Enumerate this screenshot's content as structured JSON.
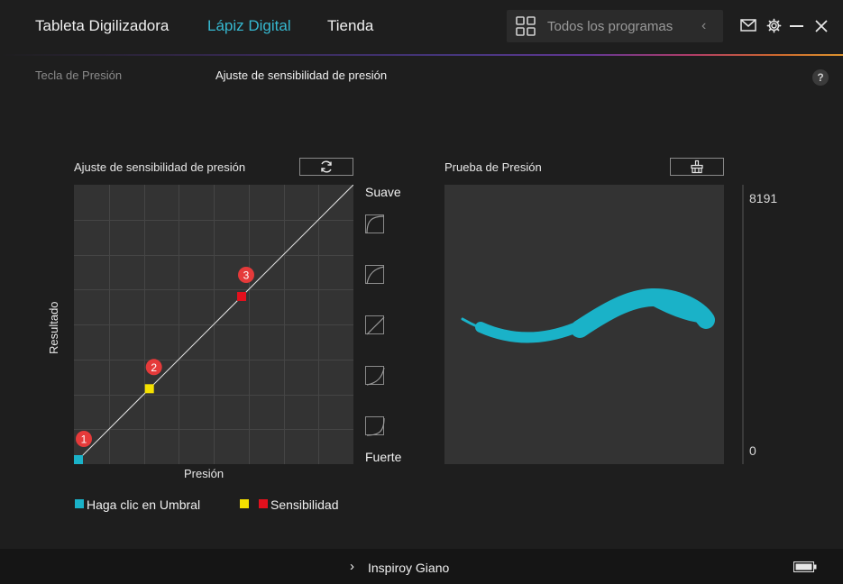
{
  "nav": {
    "tabs": [
      "Tableta Digilizadora",
      "Lápiz Digital",
      "Tienda"
    ],
    "active": "Lápiz Digital"
  },
  "search": {
    "placeholder": "Todos los programas"
  },
  "subtabs": [
    "Tecla de Presión",
    "Ajuste de sensibilidad de presión"
  ],
  "help": "?",
  "sensitivity": {
    "title": "Ajuste de sensibilidad de presión",
    "y_axis": "Resultado",
    "x_axis": "Presión",
    "top_label": "Suave",
    "bottom_label": "Fuerte",
    "points": [
      {
        "num": "1",
        "pressure": 0.0,
        "output": 0.0,
        "color": "#1ab2c8"
      },
      {
        "num": "2",
        "pressure": 0.27,
        "output": 0.27,
        "color": "#f5e100"
      },
      {
        "num": "3",
        "pressure": 0.6,
        "output": 0.6,
        "color": "#e3101d"
      }
    ]
  },
  "pressure_test": {
    "title": "Prueba de Presión",
    "max_label": "8191",
    "min_label": "0",
    "stroke_color": "#1ab2c8"
  },
  "legend": {
    "threshold": "Haga clic en Umbral",
    "sensitivity": "Sensibilidad"
  },
  "footer": {
    "device": "Inspiroy Giano"
  },
  "colors": {
    "accent": "#36b8d0",
    "badge": "#e53a3a"
  }
}
